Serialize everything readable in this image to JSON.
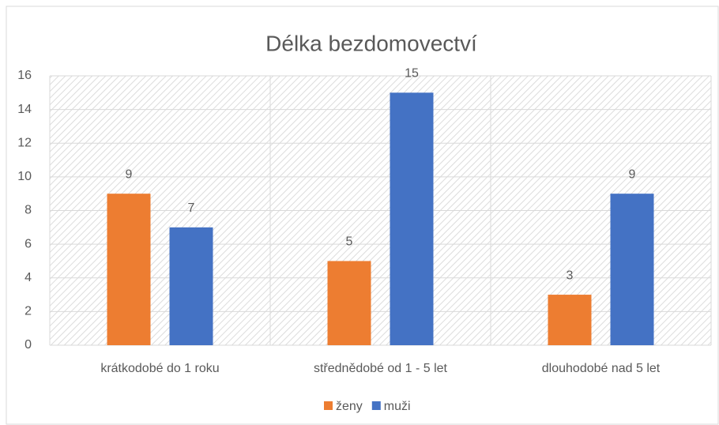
{
  "chart_data": {
    "type": "bar",
    "title": "Délka bezdomovectví",
    "categories": [
      "krátkodobé do 1 roku",
      "střednědobé od 1 - 5 let",
      "dlouhodobé nad 5 let"
    ],
    "series": [
      {
        "name": "ženy",
        "color": "#ed7d31",
        "values": [
          9,
          5,
          3
        ]
      },
      {
        "name": "muži",
        "color": "#4472c4",
        "values": [
          7,
          15,
          9
        ]
      }
    ],
    "ylim": [
      0,
      16
    ],
    "yticks": [
      0,
      2,
      4,
      6,
      8,
      10,
      12,
      14,
      16
    ],
    "grid": true,
    "legend": "bottom"
  }
}
